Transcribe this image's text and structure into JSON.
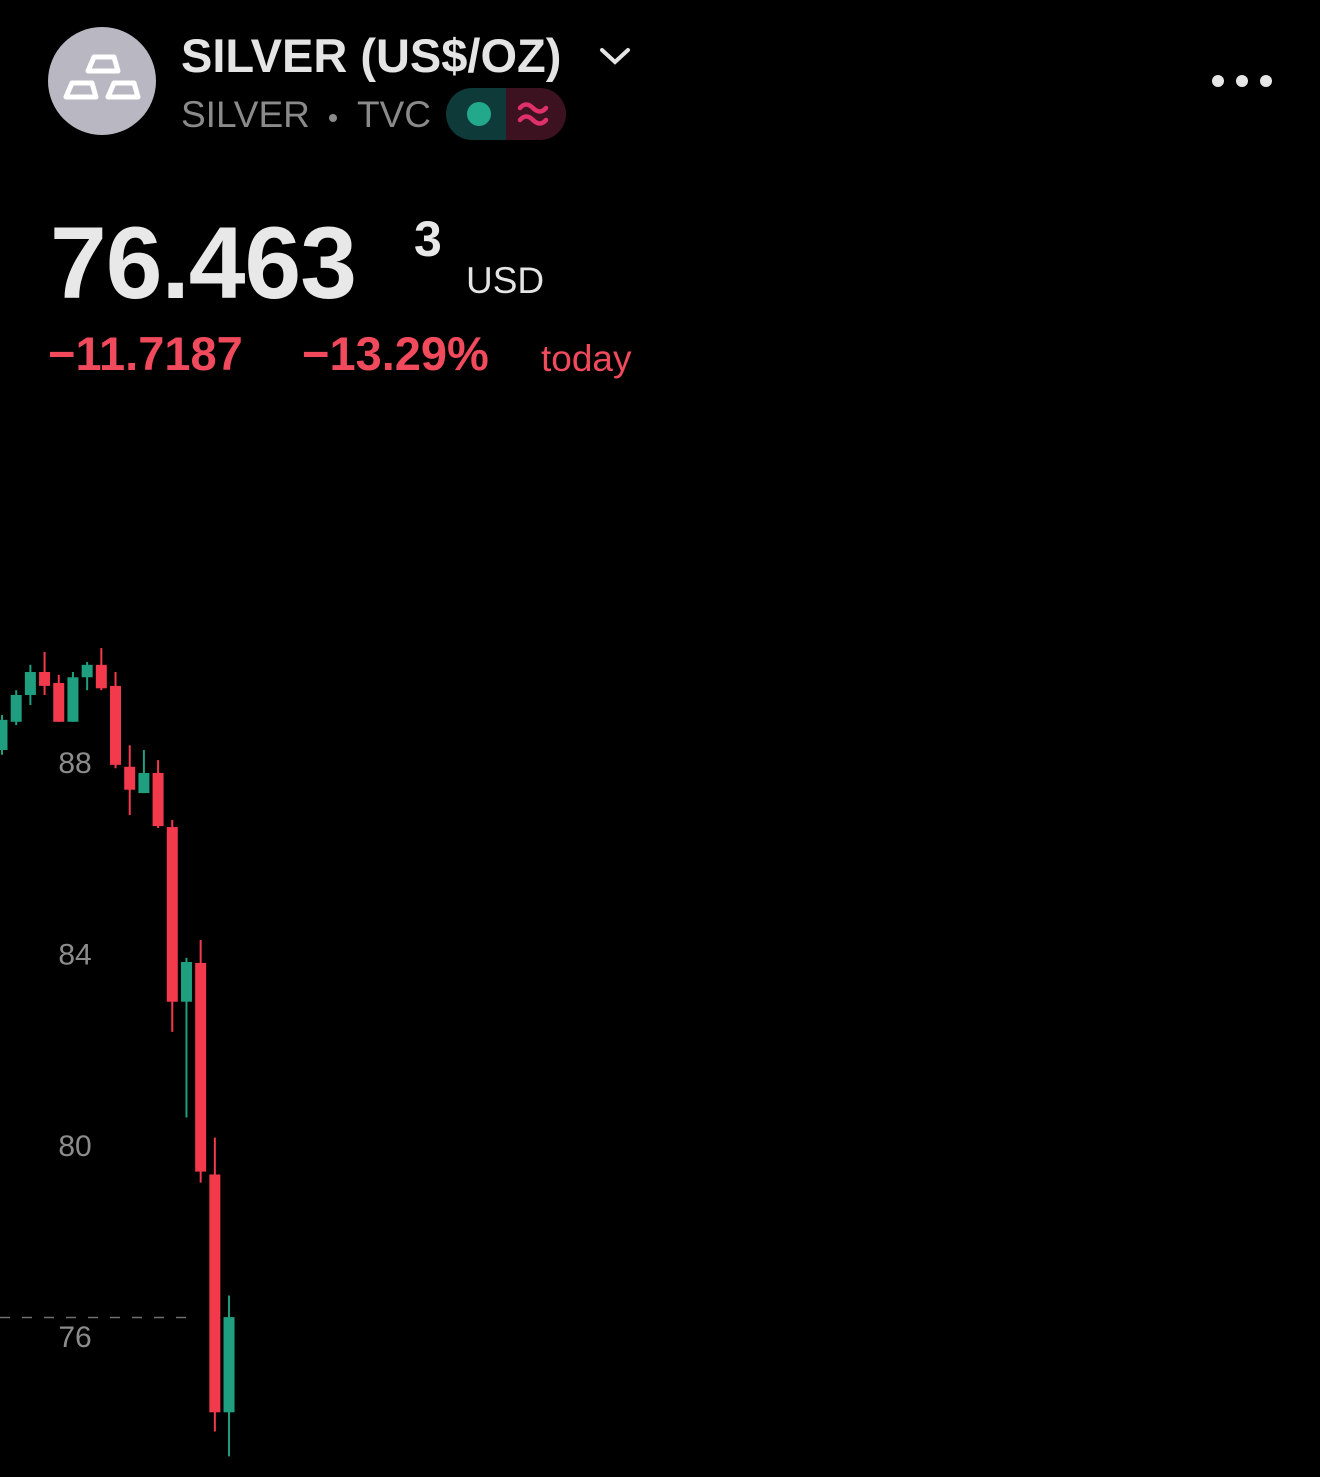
{
  "header": {
    "title": "SILVER (US$/OZ)",
    "symbol": "SILVER",
    "exchange": "TVC"
  },
  "quote": {
    "price": "76.463",
    "price_superscript": "3",
    "currency": "USD",
    "change": "−11.7187",
    "change_percent": "−13.29%",
    "period": "today"
  },
  "chart_data": {
    "type": "candlestick",
    "open": [
      88.25,
      88.84,
      89.4,
      89.88,
      89.65,
      88.84,
      89.77,
      90.03,
      89.59,
      87.9,
      87.35,
      87.77,
      86.64,
      82.99,
      83.8,
      79.38,
      74.41
    ],
    "high": [
      88.98,
      89.5,
      90.03,
      90.3,
      89.82,
      89.88,
      90.09,
      90.38,
      89.88,
      88.35,
      88.25,
      88.04,
      86.79,
      83.91,
      84.28,
      80.15,
      76.85
    ],
    "low": [
      88.15,
      88.77,
      89.19,
      89.4,
      88.84,
      88.84,
      89.5,
      89.5,
      87.87,
      86.89,
      87.35,
      86.62,
      82.36,
      80.57,
      79.21,
      74.01,
      73.49
    ],
    "close": [
      88.88,
      89.4,
      89.88,
      89.59,
      88.84,
      89.77,
      90.03,
      89.54,
      87.94,
      87.42,
      87.77,
      86.66,
      82.99,
      83.82,
      79.44,
      74.41,
      76.4
    ],
    "up_color": "#1f9e80",
    "down_color": "#f23a4c",
    "price_line": 76.39,
    "ylim": [
      73.1,
      95
    ],
    "yticks": [
      76,
      80,
      84,
      88
    ]
  }
}
